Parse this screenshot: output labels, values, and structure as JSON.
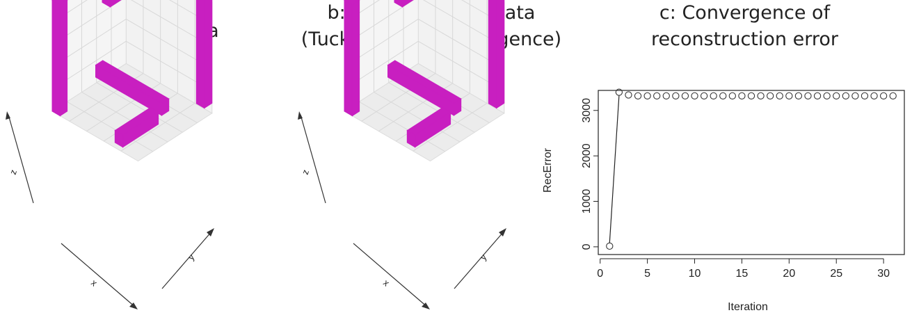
{
  "colors": {
    "voxel": "#c81fc0",
    "grid": "#d8d8d8",
    "pane": "#ececec",
    "point": "#333333"
  },
  "panels": [
    {
      "title_lines": [
        "a: Original data"
      ],
      "axes": {
        "x": "x",
        "y": "y",
        "z": "z"
      }
    },
    {
      "title_lines": [
        "b: Reconstructed data",
        "(Tucker with KL-divergence)"
      ],
      "axes": {
        "x": "x",
        "y": "y",
        "z": "z"
      }
    }
  ],
  "chart_data": {
    "type": "scatter",
    "title": "c: Convergence of reconstruction error",
    "title_lines": [
      "c: Convergence of",
      "reconstruction error"
    ],
    "xlabel": "Iteration",
    "ylabel": "RecError",
    "xlim": [
      1,
      31
    ],
    "ylim": [
      0,
      3400
    ],
    "xticks": [
      0,
      5,
      10,
      15,
      20,
      25,
      30
    ],
    "yticks": [
      0,
      1000,
      2000,
      3000
    ],
    "x": [
      1,
      2,
      3,
      4,
      5,
      6,
      7,
      8,
      9,
      10,
      11,
      12,
      13,
      14,
      15,
      16,
      17,
      18,
      19,
      20,
      21,
      22,
      23,
      24,
      25,
      26,
      27,
      28,
      29,
      30,
      31
    ],
    "y": [
      15,
      3400,
      3340,
      3320,
      3320,
      3320,
      3320,
      3320,
      3320,
      3320,
      3320,
      3320,
      3320,
      3320,
      3320,
      3320,
      3320,
      3320,
      3320,
      3320,
      3320,
      3320,
      3320,
      3320,
      3320,
      3320,
      3320,
      3320,
      3320,
      3320,
      3320
    ],
    "segments_connected": [
      [
        1,
        2
      ]
    ]
  }
}
